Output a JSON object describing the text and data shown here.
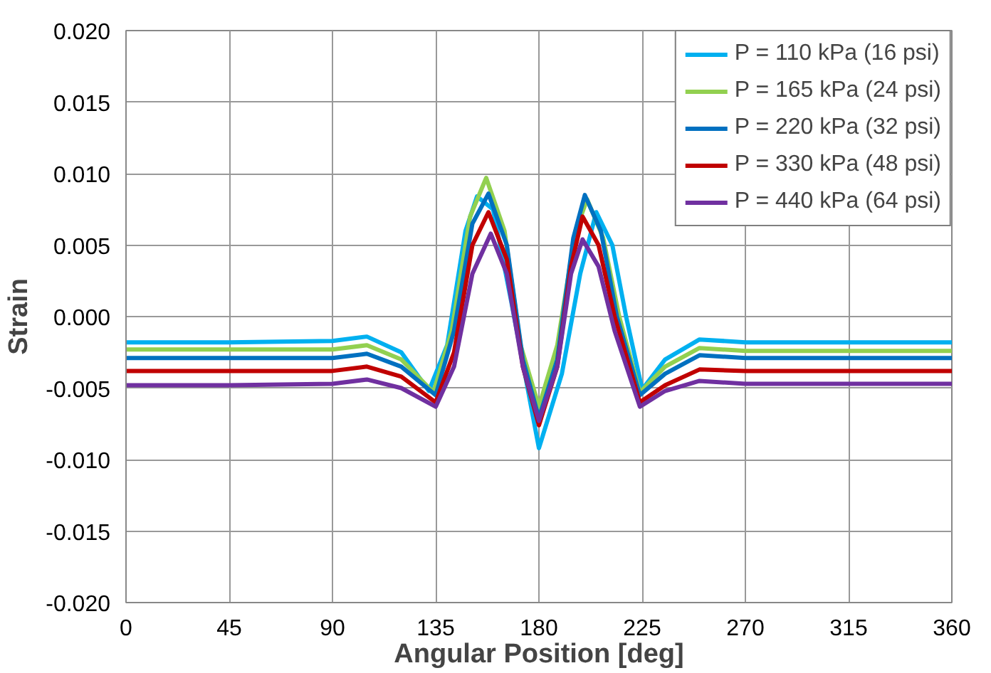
{
  "chart_data": {
    "type": "line",
    "xlabel": "Angular Position [deg]",
    "ylabel": "Strain",
    "xlim": [
      0,
      360
    ],
    "xticks": [
      0,
      45,
      90,
      135,
      180,
      225,
      270,
      315,
      360
    ],
    "ylim": [
      -0.02,
      0.02
    ],
    "yticks": [
      {
        "value": -0.02,
        "label": "-0.020"
      },
      {
        "value": -0.015,
        "label": "-0.015"
      },
      {
        "value": -0.01,
        "label": "-0.010"
      },
      {
        "value": -0.005,
        "label": "-0.005"
      },
      {
        "value": 0,
        "label": "0.000"
      },
      {
        "value": 0.005,
        "label": "0.005"
      },
      {
        "value": 0.01,
        "label": "0.010"
      },
      {
        "value": 0.015,
        "label": "0.015"
      },
      {
        "value": 0.02,
        "label": "0.020"
      }
    ],
    "grid": true,
    "legend": "top right",
    "marker": "none",
    "line_style": "solid",
    "series": [
      {
        "name": "P = 110 kPa (16 psi)",
        "color": "#00b0f0",
        "x": [
          0,
          45,
          90,
          105,
          120,
          132,
          140,
          148,
          153,
          160,
          168,
          180,
          190,
          198,
          205,
          212,
          218,
          225,
          235,
          250,
          270,
          315,
          360
        ],
        "values": [
          -0.0018,
          -0.0018,
          -0.0017,
          -0.0014,
          -0.0025,
          -0.0052,
          -0.002,
          0.006,
          0.0084,
          0.0075,
          0.001,
          -0.0092,
          -0.004,
          0.003,
          0.0073,
          0.005,
          0.0,
          -0.0051,
          -0.003,
          -0.0016,
          -0.0018,
          -0.0018,
          -0.0018
        ]
      },
      {
        "name": "P = 165 kPa (24 psi)",
        "color": "#92d050",
        "x": [
          0,
          45,
          90,
          105,
          120,
          134,
          142,
          150,
          157,
          165,
          172,
          180,
          188,
          196,
          201,
          208,
          215,
          224,
          235,
          250,
          270,
          315,
          360
        ],
        "values": [
          -0.0023,
          -0.0023,
          -0.0023,
          -0.002,
          -0.003,
          -0.0053,
          -0.001,
          0.007,
          0.0097,
          0.006,
          -0.002,
          -0.0063,
          -0.002,
          0.006,
          0.0082,
          0.0055,
          0.0,
          -0.0053,
          -0.0035,
          -0.0022,
          -0.0024,
          -0.0024,
          -0.0024
        ]
      },
      {
        "name": "P = 220 kPa (32 psi)",
        "color": "#0070c0",
        "x": [
          0,
          45,
          90,
          105,
          120,
          135,
          143,
          151,
          158,
          166,
          173,
          180,
          188,
          195,
          200,
          207,
          214,
          224,
          235,
          250,
          270,
          315,
          360
        ],
        "values": [
          -0.0029,
          -0.0029,
          -0.0029,
          -0.0026,
          -0.0035,
          -0.0055,
          -0.001,
          0.0065,
          0.0086,
          0.005,
          -0.003,
          -0.0071,
          -0.003,
          0.0055,
          0.0085,
          0.006,
          0.0,
          -0.0055,
          -0.004,
          -0.0027,
          -0.0029,
          -0.0029,
          -0.0029
        ]
      },
      {
        "name": "P = 330 kPa (48 psi)",
        "color": "#c00000",
        "x": [
          0,
          45,
          90,
          105,
          120,
          135,
          143,
          151,
          158,
          166,
          173,
          180,
          188,
          194,
          199,
          206,
          213,
          224,
          235,
          250,
          270,
          315,
          360
        ],
        "values": [
          -0.0038,
          -0.0038,
          -0.0038,
          -0.0035,
          -0.0042,
          -0.006,
          -0.0025,
          0.005,
          0.0073,
          0.004,
          -0.0035,
          -0.0076,
          -0.0035,
          0.0035,
          0.007,
          0.005,
          0.0,
          -0.006,
          -0.0048,
          -0.0037,
          -0.0038,
          -0.0038,
          -0.0038
        ]
      },
      {
        "name": "P = 440 kPa (64 psi)",
        "color": "#7030a0",
        "x": [
          0,
          45,
          90,
          105,
          120,
          135,
          143,
          151,
          159,
          166,
          173,
          180,
          188,
          194,
          199,
          206,
          213,
          224,
          235,
          250,
          270,
          315,
          360
        ],
        "values": [
          -0.0048,
          -0.0048,
          -0.0047,
          -0.0044,
          -0.005,
          -0.0063,
          -0.0035,
          0.003,
          0.0058,
          0.003,
          -0.0035,
          -0.0073,
          -0.0035,
          0.003,
          0.0054,
          0.0035,
          -0.001,
          -0.0063,
          -0.0052,
          -0.0045,
          -0.0047,
          -0.0047,
          -0.0047
        ]
      }
    ]
  }
}
